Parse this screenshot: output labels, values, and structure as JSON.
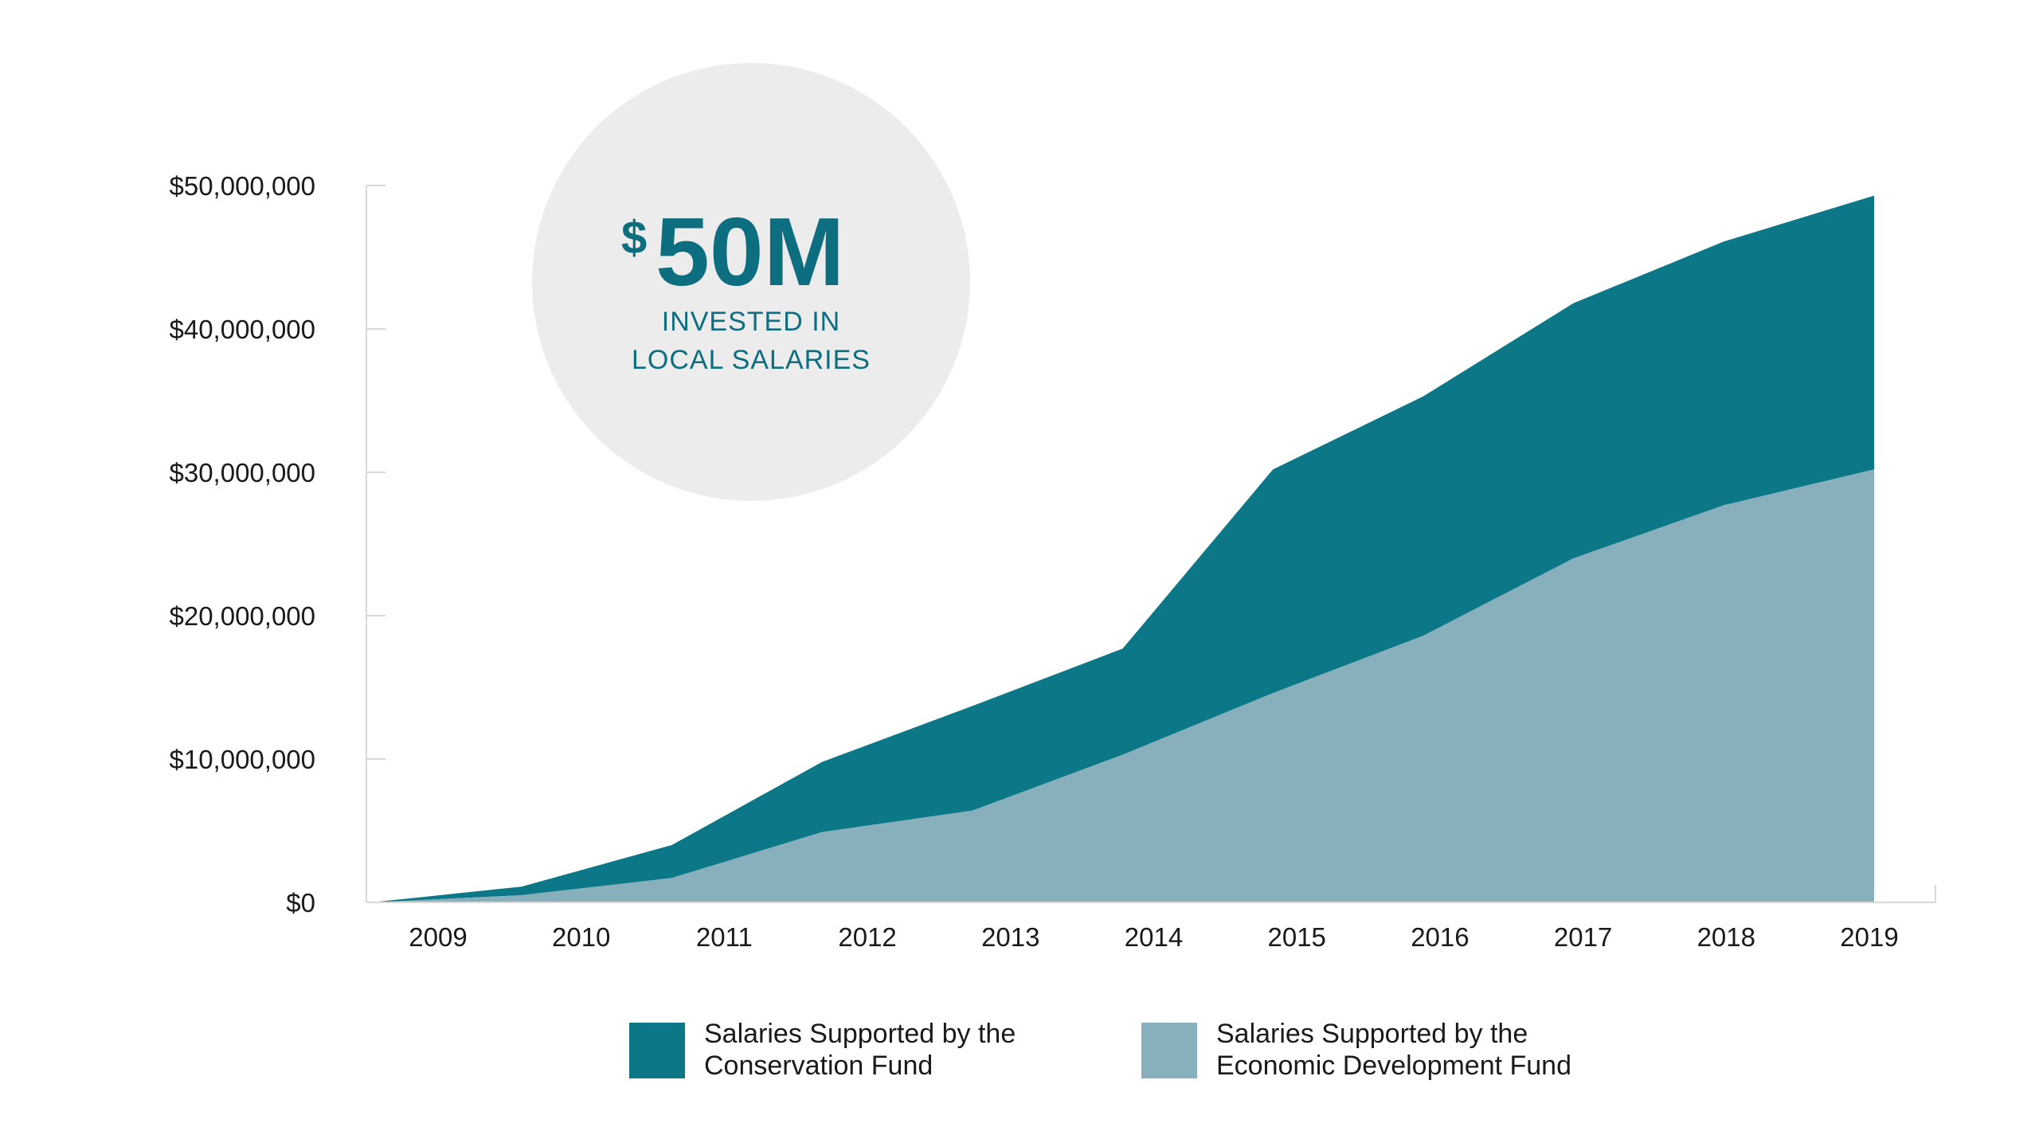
{
  "callout": {
    "currency": "$",
    "amount": "50M",
    "line1": "INVESTED IN",
    "line2": "LOCAL SALARIES"
  },
  "colors": {
    "conservation": "#0c7887",
    "economic": "#88afbc",
    "callout_circle": "#ececec",
    "callout_text": "#0c6e7f",
    "axis": "#d9d9d9"
  },
  "legend": [
    {
      "line1": "Salaries Supported by the",
      "line2": "Conservation Fund",
      "color": "#0c7887"
    },
    {
      "line1": "Salaries Supported by the",
      "line2": "Economic Development Fund",
      "color": "#88afbc"
    }
  ],
  "chart_data": {
    "type": "area",
    "stacked": true,
    "title": "",
    "xlabel": "",
    "ylabel": "",
    "x": [
      "2009",
      "2010",
      "2011",
      "2012",
      "2013",
      "2014",
      "2015",
      "2016",
      "2017",
      "2018",
      "2019"
    ],
    "ylim": [
      0,
      50000000
    ],
    "y_ticks": [
      0,
      10000000,
      20000000,
      30000000,
      40000000,
      50000000
    ],
    "y_tick_labels": [
      "$0",
      "$10,000,000",
      "$20,000,000",
      "$30,000,000",
      "$40,000,000",
      "$50,000,000"
    ],
    "grid": false,
    "legend_position": "bottom",
    "series": [
      {
        "name": "Salaries Supported by the Economic Development Fund",
        "color": "#88afbc",
        "values": [
          0,
          500000,
          1700000,
          4900000,
          6400000,
          10300000,
          14600000,
          18600000,
          24000000,
          27700000,
          30200000
        ]
      },
      {
        "name": "Salaries Supported by the Conservation Fund",
        "color": "#0c7887",
        "totals": [
          0,
          1100000,
          4000000,
          9800000,
          13700000,
          17700000,
          30200000,
          35300000,
          41800000,
          46100000,
          49300000
        ]
      }
    ]
  }
}
